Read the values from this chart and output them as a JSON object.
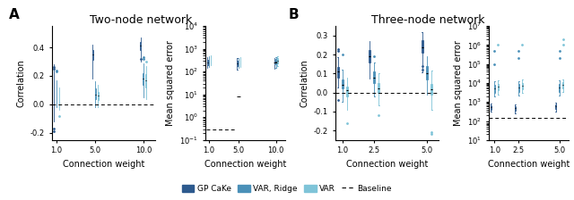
{
  "title_A": "Two-node network",
  "title_B": "Three-node network",
  "color_cake": "#2d5a8e",
  "color_var_ridge": "#4a90b8",
  "color_var": "#7fc4d8",
  "xlabel": "Connection weight",
  "ylabel_corr": "Correlation",
  "ylabel_mse": "Mean squared error",
  "A_corr_xticks": [
    1.0,
    5.0,
    10.0
  ],
  "A_corr_ylim": [
    -0.25,
    0.55
  ],
  "A_corr_yticks": [
    -0.2,
    0.0,
    0.2,
    0.4
  ],
  "B_corr_xticks": [
    1.0,
    2.5,
    5.0
  ],
  "B_corr_ylim": [
    -0.25,
    0.35
  ],
  "B_corr_yticks": [
    -0.2,
    -0.1,
    0.0,
    0.1,
    0.2,
    0.3
  ]
}
